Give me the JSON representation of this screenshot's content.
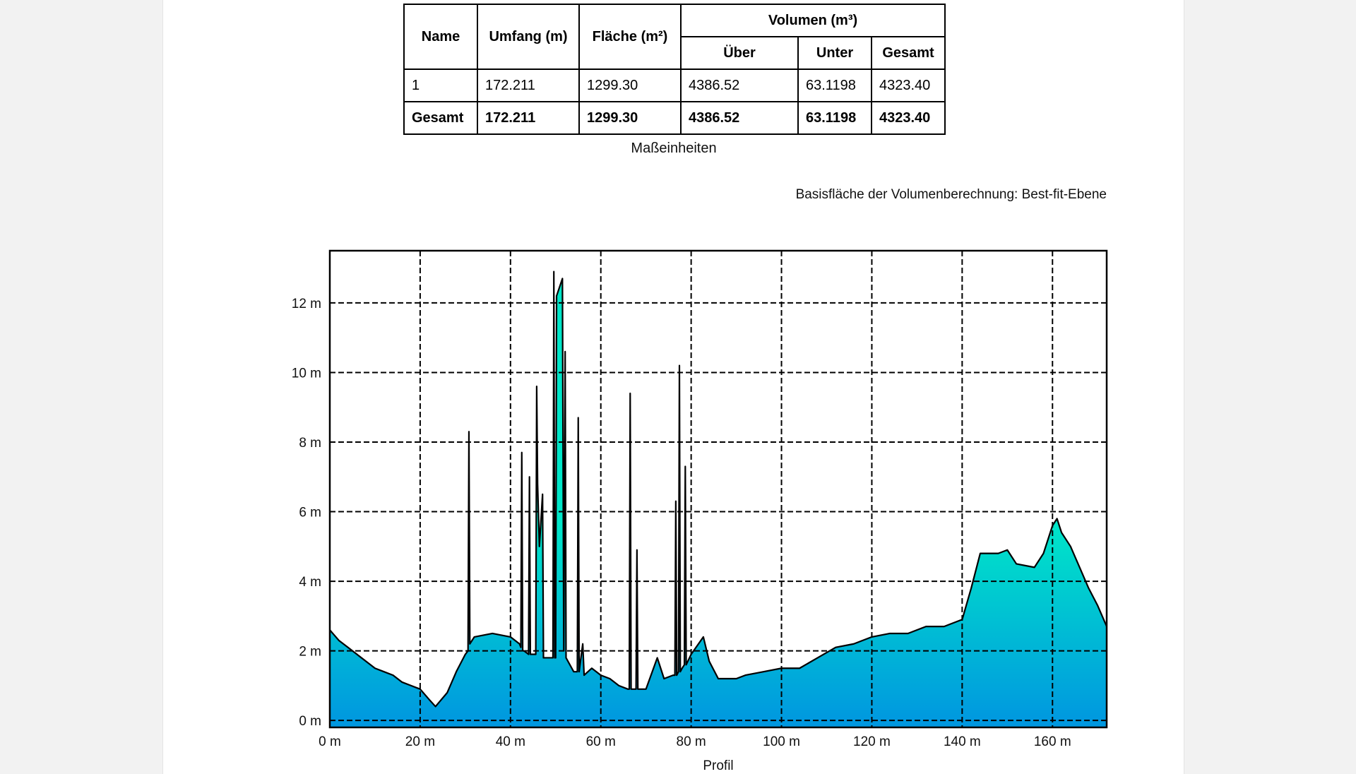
{
  "table": {
    "headers": [
      "Name",
      "Umfang (m)",
      "Fläche (m²)",
      "Volumen (m³)"
    ],
    "subheaders": [
      "Über",
      "Unter",
      "Gesamt"
    ],
    "rows": [
      [
        "1",
        "172.211",
        "1299.30",
        "4386.52",
        "63.1198",
        "4323.40"
      ],
      [
        "Gesamt",
        "172.211",
        "1299.30",
        "4386.52",
        "63.1198",
        "4323.40"
      ]
    ]
  },
  "caption": "Maßeinheiten",
  "note": "Basisfläche der Volumenberechnung: Best-fit-Ebene",
  "chart_data": {
    "type": "area",
    "x_label": "Profil",
    "x": [
      0,
      2,
      4,
      6,
      8,
      10,
      12,
      14,
      16,
      18,
      20,
      22,
      23.4,
      26,
      28,
      30,
      30.6,
      30.8,
      31,
      32,
      36,
      40,
      42,
      42.3,
      42.5,
      42.7,
      43,
      44,
      44.2,
      44.4,
      45.6,
      45.8,
      46,
      46.4,
      47.1,
      47.3,
      48,
      49.4,
      49.6,
      49.8,
      50,
      50.2,
      51.5,
      51.8,
      52.1,
      52.3,
      54,
      54.8,
      55,
      55.2,
      56,
      56.3,
      58,
      60,
      62,
      64,
      66,
      66.3,
      66.5,
      66.7,
      67.8,
      68,
      68.2,
      70,
      72.5,
      74,
      76,
      76.4,
      76.6,
      76.8,
      77.2,
      77.4,
      77.6,
      78,
      78.5,
      78.7,
      78.9,
      80,
      82.7,
      84,
      86,
      88,
      90,
      92,
      96,
      100,
      104,
      108,
      112,
      116,
      120,
      124,
      128,
      132,
      136,
      140,
      142,
      144,
      148,
      150,
      152,
      156,
      158,
      160,
      161,
      162,
      164,
      166,
      168,
      170,
      172
    ],
    "series": [
      {
        "color": "#000000",
        "values": [
          2.6,
          2.3,
          2.1,
          1.9,
          1.7,
          1.5,
          1.4,
          1.3,
          1.1,
          1.0,
          0.9,
          0.6,
          0.4,
          0.8,
          1.4,
          1.9,
          2.0,
          8.3,
          2.2,
          2.4,
          2.5,
          2.4,
          2.2,
          2.1,
          7.7,
          2.0,
          2.0,
          1.9,
          7.0,
          1.9,
          1.9,
          9.6,
          6.8,
          5.0,
          6.5,
          1.8,
          1.8,
          1.8,
          12.9,
          1.8,
          1.8,
          12.2,
          12.7,
          2.0,
          10.6,
          1.8,
          1.4,
          1.4,
          8.7,
          1.4,
          2.2,
          1.3,
          1.5,
          1.3,
          1.2,
          1.0,
          0.9,
          0.9,
          9.4,
          0.9,
          0.9,
          4.9,
          0.9,
          0.9,
          1.8,
          1.2,
          1.3,
          1.3,
          6.3,
          1.3,
          1.4,
          10.2,
          1.4,
          1.5,
          1.6,
          7.3,
          1.6,
          1.9,
          2.4,
          1.7,
          1.2,
          1.2,
          1.2,
          1.3,
          1.4,
          1.5,
          1.5,
          1.8,
          2.1,
          2.2,
          2.4,
          2.5,
          2.5,
          2.7,
          2.7,
          2.9,
          3.8,
          4.8,
          4.8,
          4.9,
          4.5,
          4.4,
          4.8,
          5.6,
          5.8,
          5.4,
          5.0,
          4.4,
          3.8,
          3.3,
          2.7
        ]
      }
    ],
    "xlim": [
      0,
      172
    ],
    "ylim": [
      -0.2,
      13.5
    ],
    "xticks": [
      {
        "value": 0,
        "label": "0 m"
      },
      {
        "value": 20,
        "label": "20 m"
      },
      {
        "value": 40,
        "label": "40 m"
      },
      {
        "value": 60,
        "label": "60 m"
      },
      {
        "value": 80,
        "label": "80 m"
      },
      {
        "value": 100,
        "label": "100 m"
      },
      {
        "value": 120,
        "label": "120 m"
      },
      {
        "value": 140,
        "label": "140 m"
      },
      {
        "value": 160,
        "label": "160 m"
      }
    ],
    "yticks": [
      {
        "value": 0,
        "label": "0 m"
      },
      {
        "value": 2,
        "label": "2 m"
      },
      {
        "value": 4,
        "label": "4 m"
      },
      {
        "value": 6,
        "label": "6 m"
      },
      {
        "value": 8,
        "label": "8 m"
      },
      {
        "value": 10,
        "label": "10 m"
      },
      {
        "value": 12,
        "label": "12 m"
      }
    ],
    "grid": true
  }
}
